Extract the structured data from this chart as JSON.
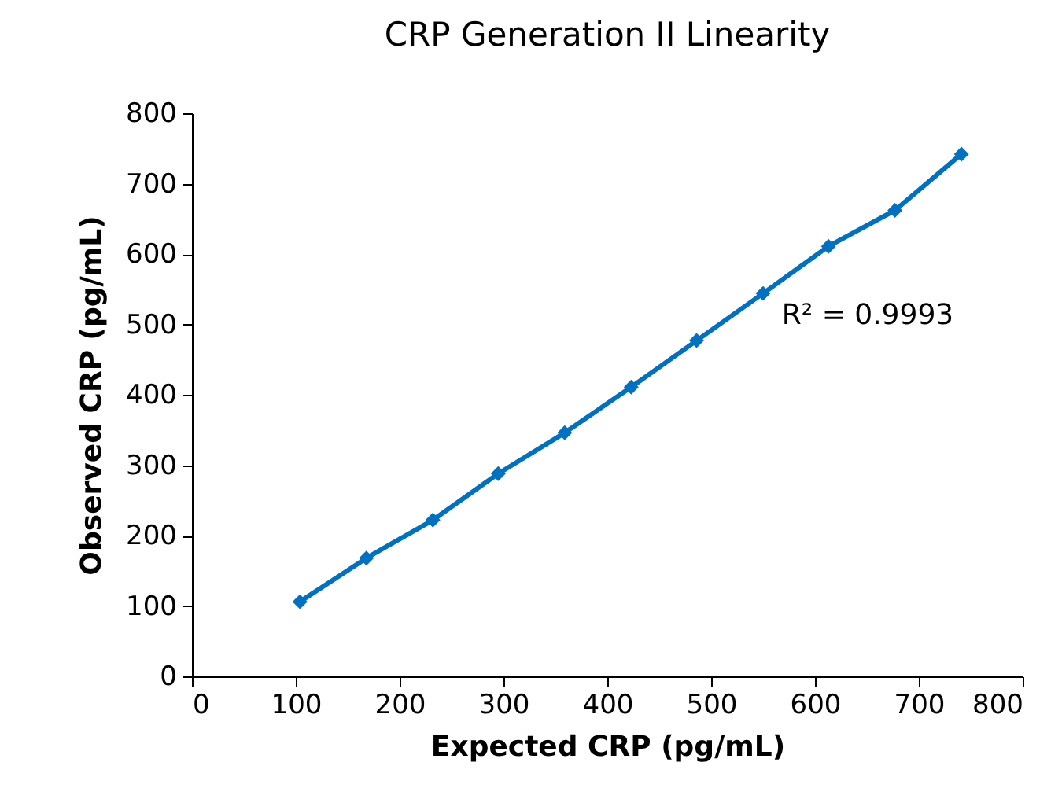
{
  "chart_data": {
    "type": "line",
    "title": "CRP Generation II Linearity",
    "xlabel": "Expected CRP (pg/mL)",
    "ylabel": "Observed CRP (pg/mL)",
    "x": [
      104,
      168,
      232,
      295,
      359,
      423,
      486,
      550,
      613,
      677,
      741
    ],
    "series": [
      {
        "color": "#0070c0",
        "values": [
          106,
          168,
          222,
          288,
          346,
          411,
          477,
          544,
          611,
          662,
          742
        ]
      }
    ],
    "xlim": [
      0,
      800
    ],
    "xticks": [
      0,
      100,
      200,
      300,
      400,
      500,
      600,
      700,
      800
    ],
    "ylim": [
      0,
      800
    ],
    "yticks": [
      0,
      100,
      200,
      300,
      400,
      500,
      600,
      700,
      800
    ],
    "marker": "diamond",
    "line_style": "solid",
    "grid": false,
    "annotations": [
      "R² = 0.9993"
    ]
  }
}
